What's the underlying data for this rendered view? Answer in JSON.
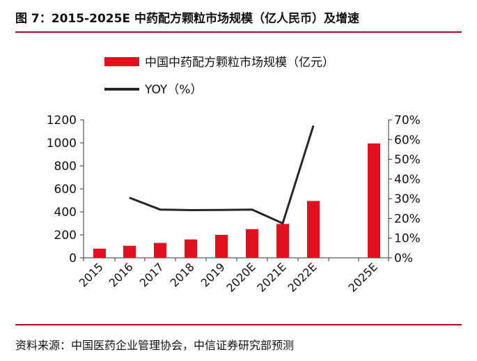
{
  "header": {
    "title": "图 7：2015-2025E 中药配方颗粒市场规模（亿人民币）及增速"
  },
  "footer": {
    "source": "资料来源：中国医药企业管理协会，中信证券研究部预测"
  },
  "colors": {
    "bar": "#e3101f",
    "line": "#262626",
    "rule": "#a30f1e"
  },
  "chart_data": {
    "type": "bar",
    "categories": [
      "2015",
      "2016",
      "2017",
      "2018",
      "2019",
      "2020E",
      "2021E",
      "2022E",
      "2025E"
    ],
    "series": [
      {
        "name": "中国中药配方颗粒市场规模（亿元）",
        "type": "bar",
        "axis": "left",
        "values": [
          80,
          105,
          130,
          160,
          200,
          250,
          295,
          495,
          995
        ]
      },
      {
        "name": "YOY（%）",
        "type": "line",
        "axis": "right",
        "values": [
          null,
          30.5,
          24.5,
          24.2,
          24.3,
          24.5,
          17.5,
          67,
          null
        ]
      }
    ],
    "left_axis": {
      "ylim": [
        0,
        1200
      ],
      "ticks": [
        "0",
        "200",
        "400",
        "600",
        "800",
        "1000",
        "1200"
      ]
    },
    "right_axis": {
      "ylim": [
        0,
        70
      ],
      "ticks": [
        "0%",
        "10%",
        "20%",
        "30%",
        "40%",
        "50%",
        "60%",
        "70%"
      ]
    },
    "legend_position": "top",
    "grid": false
  }
}
